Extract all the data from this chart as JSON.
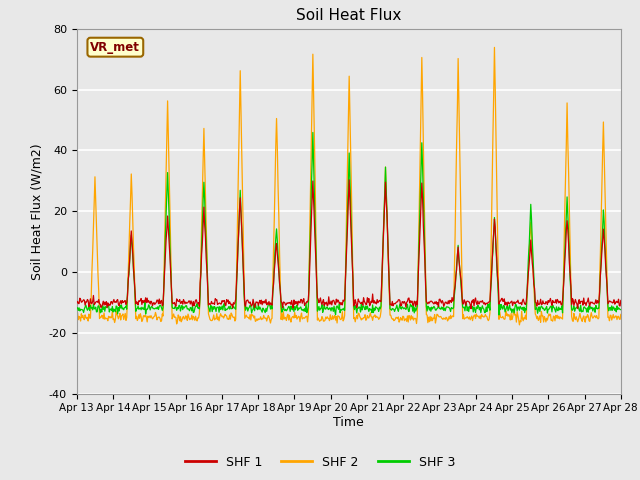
{
  "title": "Soil Heat Flux",
  "xlabel": "Time",
  "ylabel": "Soil Heat Flux (W/m2)",
  "ylim": [
    -40,
    80
  ],
  "yticks": [
    -40,
    -20,
    0,
    20,
    40,
    60,
    80
  ],
  "xtick_labels": [
    "Apr 13",
    "Apr 14",
    "Apr 15",
    "Apr 16",
    "Apr 17",
    "Apr 18",
    "Apr 19",
    "Apr 20",
    "Apr 21",
    "Apr 22",
    "Apr 23",
    "Apr 24",
    "Apr 25",
    "Apr 26",
    "Apr 27",
    "Apr 28"
  ],
  "plot_bg_color": "#e8e8e8",
  "fig_bg_color": "#e8e8e8",
  "shf1_color": "#cc0000",
  "shf2_color": "#ffa500",
  "shf3_color": "#00cc00",
  "grid_color": "#ffffff",
  "annotation_text": "VR_met",
  "annotation_bg": "#ffffcc",
  "annotation_border": "#996600",
  "legend_labels": [
    "SHF 1",
    "SHF 2",
    "SHF 3"
  ]
}
